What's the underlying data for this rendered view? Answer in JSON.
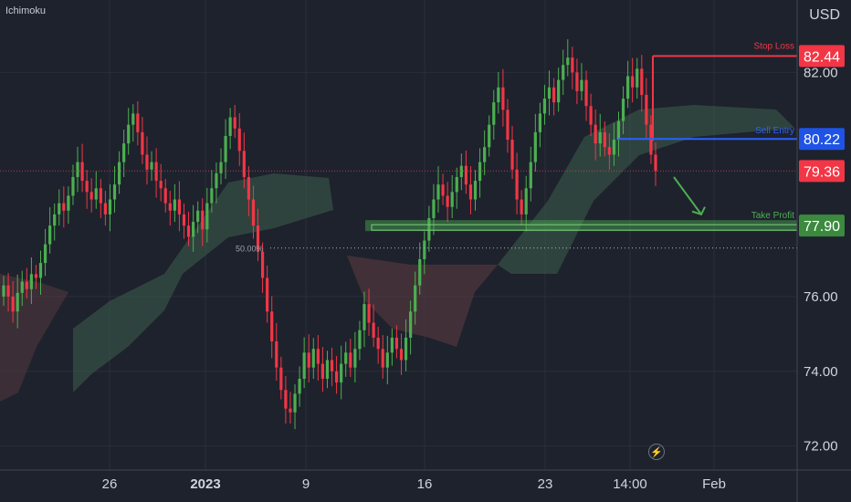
{
  "indicator": "Ichimoku",
  "currency": "USD",
  "colors": {
    "background": "#1e222d",
    "up": "#4caf50",
    "down": "#f23645",
    "grid": "#2a2e39",
    "stop_loss": "#f23645",
    "sell_entry": "#2962ff",
    "take_profit": "#4caf50",
    "cloud_green": "#3a5a4a",
    "cloud_red": "#5a3a40"
  },
  "price_axis": {
    "ticks": [
      "82.00",
      "76.00",
      "74.00",
      "72.00"
    ],
    "tick_values": [
      82.0,
      76.0,
      74.0,
      72.0
    ]
  },
  "time_axis": {
    "ticks": [
      "26",
      "2023",
      "9",
      "16",
      "23",
      "14:00",
      "Feb"
    ]
  },
  "levels": {
    "stop_loss": {
      "label": "Stop Loss",
      "price": "82.44",
      "value": 82.44
    },
    "sell_entry": {
      "label": "Sell Entry",
      "price": "80.22",
      "value": 80.22
    },
    "current": {
      "price": "79.36",
      "value": 79.36
    },
    "take_profit": {
      "label": "Take Profit",
      "price": "77.90",
      "value": 77.9
    }
  },
  "fib": {
    "label": "50.00%",
    "value": 77.3
  },
  "chart_data": {
    "type": "candlestick",
    "ylim": [
      71.6,
      83.5
    ],
    "close_series": [
      76.3,
      76.0,
      75.6,
      76.1,
      76.4,
      76.2,
      76.6,
      76.5,
      76.9,
      77.4,
      77.9,
      78.2,
      78.5,
      78.3,
      78.7,
      79.2,
      79.6,
      79.1,
      78.8,
      78.6,
      78.9,
      78.5,
      78.2,
      78.6,
      79.0,
      79.6,
      80.1,
      80.6,
      80.9,
      80.4,
      79.8,
      79.4,
      79.6,
      79.1,
      78.9,
      78.5,
      78.3,
      78.6,
      78.2,
      77.9,
      77.6,
      78.0,
      78.3,
      77.8,
      78.5,
      78.9,
      79.3,
      79.6,
      80.3,
      80.8,
      80.5,
      79.9,
      79.2,
      78.6,
      77.9,
      77.2,
      76.5,
      75.6,
      74.8,
      74.1,
      73.5,
      73.0,
      72.9,
      73.4,
      73.8,
      74.5,
      74.1,
      74.6,
      74.2,
      73.8,
      74.3,
      74.0,
      73.7,
      74.2,
      74.5,
      74.1,
      74.6,
      75.1,
      75.8,
      75.3,
      74.9,
      74.6,
      74.1,
      74.5,
      74.9,
      74.6,
      74.3,
      74.9,
      75.6,
      76.3,
      77.0,
      77.5,
      78.1,
      78.6,
      79.0,
      78.7,
      78.4,
      78.8,
      79.2,
      79.5,
      79.0,
      78.6,
      79.1,
      79.6,
      80.0,
      80.6,
      81.2,
      81.6,
      81.0,
      80.2,
      79.4,
      78.6,
      78.2,
      78.9,
      79.6,
      80.4,
      80.9,
      81.3,
      81.6,
      81.2,
      81.8,
      82.2,
      82.4,
      82.0,
      81.5,
      81.8,
      81.1,
      80.6,
      80.1,
      80.4,
      80.0,
      79.8,
      80.2,
      80.7,
      81.3,
      81.9,
      81.6,
      82.1,
      81.4,
      80.6,
      79.8,
      79.36
    ]
  }
}
